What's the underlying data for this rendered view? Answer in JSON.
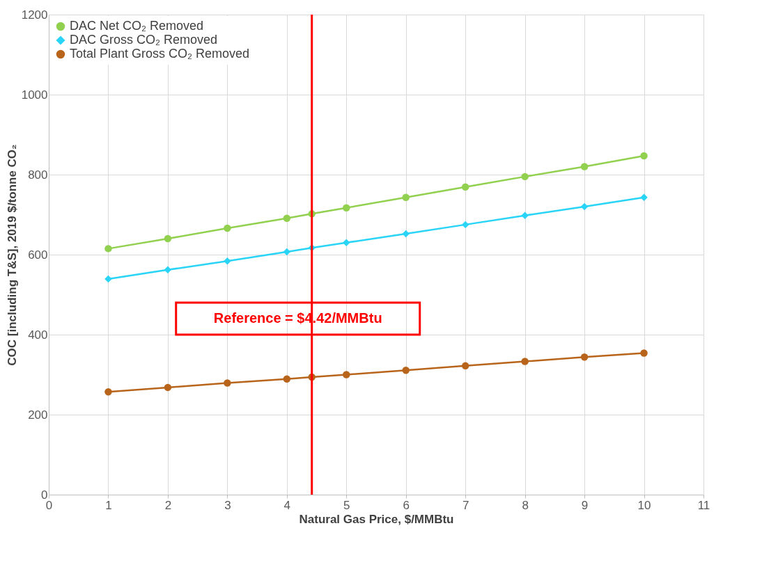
{
  "chart_data": {
    "type": "line",
    "xlabel": "Natural Gas Price, $/MMBtu",
    "ylabel": "COC [including T&S], 2019 $/tonne CO₂",
    "x": [
      1,
      2,
      3,
      4,
      4.42,
      5,
      6,
      7,
      8,
      9,
      10
    ],
    "series": [
      {
        "name": "DAC Net CO₂ Removed",
        "color": "#92d050",
        "marker": "circle",
        "values": [
          615,
          640,
          666,
          691,
          702,
          717,
          743,
          769,
          795,
          820,
          847
        ]
      },
      {
        "name": "DAC Gross CO₂ Removed",
        "color": "#29d4f7",
        "marker": "diamond",
        "values": [
          539,
          562,
          584,
          607,
          617,
          630,
          652,
          675,
          698,
          720,
          743
        ]
      },
      {
        "name": "Total Plant Gross CO₂ Removed",
        "color": "#b8651b",
        "marker": "circle",
        "values": [
          257,
          268,
          279,
          289,
          294,
          300,
          311,
          322,
          333,
          344,
          354
        ]
      }
    ],
    "xlim": [
      0,
      11
    ],
    "xticks": [
      0,
      1,
      2,
      3,
      4,
      5,
      6,
      7,
      8,
      9,
      10,
      11
    ],
    "ylim": [
      0,
      1200
    ],
    "yticks": [
      0,
      200,
      400,
      600,
      800,
      1000,
      1200
    ],
    "grid": true,
    "legend": "top left",
    "ref_lines": [
      {
        "axis": "x",
        "value": 4.42,
        "label": "Reference = $4.42/MMBtu",
        "color": "#ff0000"
      }
    ]
  }
}
